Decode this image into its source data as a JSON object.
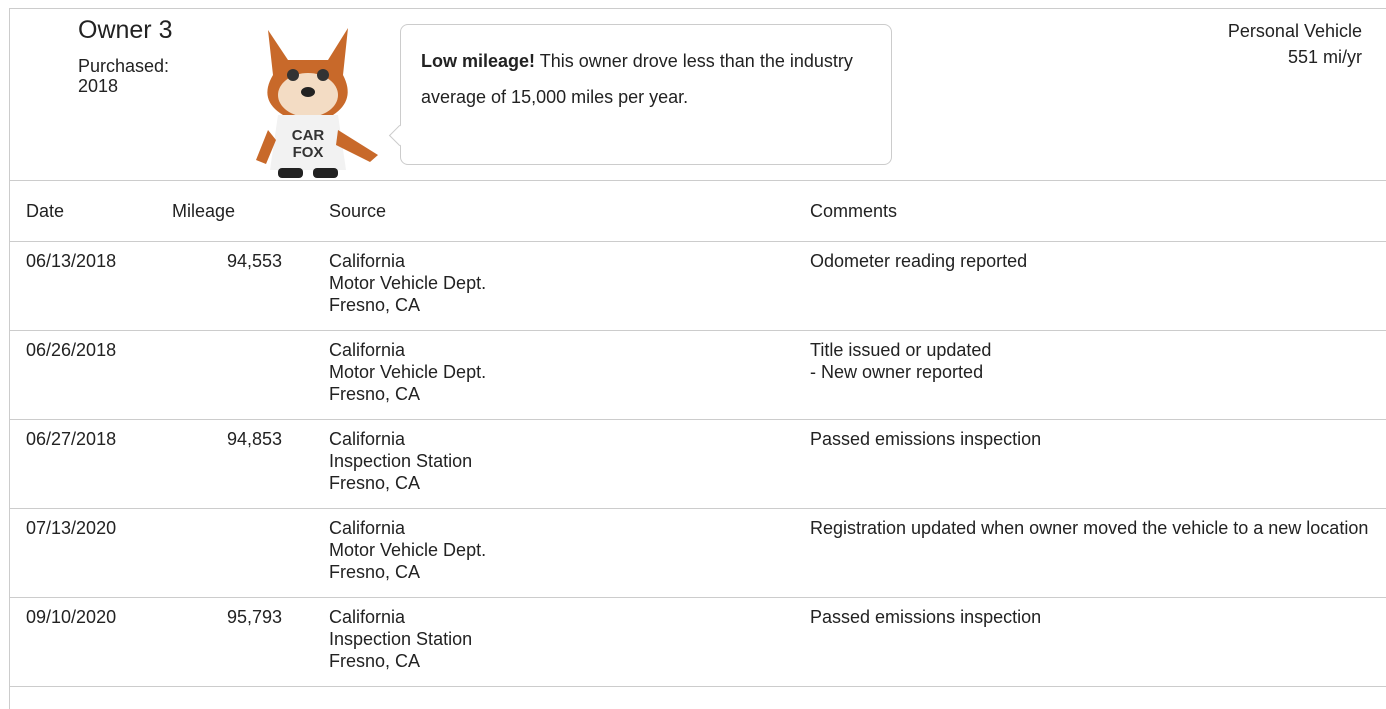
{
  "header": {
    "owner": "Owner 3",
    "purchased": "Purchased: 2018",
    "vehicle_type": "Personal Vehicle",
    "mileage_rate": "551 mi/yr",
    "mascot_shirt": [
      "CAR",
      "FOX"
    ],
    "callout": {
      "highlight": "Low mileage!",
      "text": "This owner drove less than the industry average of 15,000 miles per year."
    }
  },
  "table": {
    "columns": [
      "Date",
      "Mileage",
      "Source",
      "Comments"
    ],
    "rows": [
      {
        "date": "06/13/2018",
        "mileage": "94,553",
        "source": [
          "California",
          "Motor Vehicle Dept.",
          "Fresno, CA"
        ],
        "comment": "Odometer reading reported"
      },
      {
        "date": "06/26/2018",
        "source": [
          "California",
          "Motor Vehicle Dept.",
          "Fresno, CA"
        ],
        "comment": "Title issued or updated",
        "detail": "- New owner reported"
      },
      {
        "date": "06/27/2018",
        "mileage": "94,853",
        "source": [
          "California",
          "Inspection Station",
          "Fresno, CA"
        ],
        "comment": "Passed emissions inspection"
      },
      {
        "date": "07/13/2020",
        "source": [
          "California",
          "Motor Vehicle Dept.",
          "Fresno, CA"
        ],
        "comment": "Registration updated when owner moved the vehicle to a new location"
      },
      {
        "date": "09/10/2020",
        "mileage": "95,793",
        "source": [
          "California",
          "Inspection Station",
          "Fresno, CA"
        ],
        "comment": "Passed emissions inspection"
      }
    ]
  }
}
